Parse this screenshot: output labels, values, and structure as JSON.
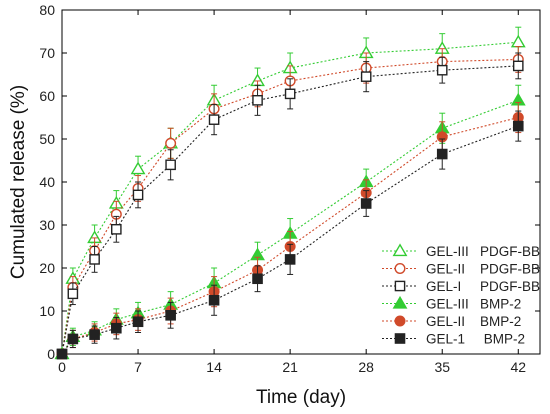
{
  "chart_data": {
    "type": "line",
    "xlabel": "Time (day)",
    "ylabel": "Cumulated release (%)",
    "xlim": [
      0,
      44
    ],
    "ylim": [
      0,
      80
    ],
    "x_ticks": [
      0,
      7,
      14,
      21,
      28,
      35,
      42
    ],
    "y_ticks": [
      0,
      10,
      20,
      30,
      40,
      50,
      60,
      70,
      80
    ],
    "grid": false,
    "legend_position": "bottom-right",
    "x": [
      0,
      1,
      3,
      5,
      7,
      10,
      14,
      18,
      21,
      28,
      35,
      42
    ],
    "series": [
      {
        "name": "GEL-III   PDGF-BB",
        "color": "#33cc33",
        "marker": "triangle-open",
        "values": [
          0,
          17.5,
          27,
          35,
          43,
          49,
          59,
          63.5,
          66.5,
          70,
          71,
          72.5
        ],
        "errors": [
          0,
          2.5,
          3,
          3,
          3,
          3.5,
          3.5,
          3,
          3.5,
          3.5,
          3.5,
          3.5
        ]
      },
      {
        "name": "GEL-II    PDGF-BB",
        "color": "#d04a2a",
        "marker": "circle-open",
        "values": [
          0,
          15.5,
          24,
          32.5,
          38.5,
          49,
          57,
          60.5,
          63.5,
          66.5,
          68,
          68.5
        ],
        "errors": [
          0,
          2.5,
          3,
          3,
          3,
          3.5,
          3.5,
          3,
          3.5,
          3.5,
          3,
          3
        ]
      },
      {
        "name": "GEL-I     PDGF-BB",
        "color": "#222222",
        "marker": "square-open",
        "values": [
          0,
          14,
          22,
          29,
          37,
          44,
          54.5,
          59,
          60.5,
          64.5,
          66,
          67
        ],
        "errors": [
          0,
          2.5,
          3,
          3,
          3,
          3.5,
          3.5,
          3.5,
          3.5,
          3.5,
          3,
          3
        ]
      },
      {
        "name": "GEL-III   BMP-2",
        "color": "#33cc33",
        "marker": "triangle-filled",
        "values": [
          0,
          4,
          5.5,
          8,
          9.5,
          11.5,
          16.5,
          23,
          28,
          40,
          52.5,
          59
        ],
        "errors": [
          0,
          2,
          2,
          2.5,
          2.5,
          3,
          3.5,
          3,
          3.5,
          3,
          3.5,
          3.5
        ]
      },
      {
        "name": "GEL-II    BMP-2",
        "color": "#d04a2a",
        "marker": "circle-filled",
        "values": [
          0,
          3.5,
          5,
          7,
          8,
          10,
          14.5,
          19.5,
          25,
          37.5,
          50.5,
          55
        ],
        "errors": [
          0,
          2,
          2,
          2.5,
          2.5,
          3,
          3.5,
          3,
          3.5,
          3,
          3.5,
          3.5
        ]
      },
      {
        "name": "GEL-1     BMP-2",
        "color": "#222222",
        "marker": "square-filled",
        "values": [
          0,
          3.5,
          4.5,
          6,
          7.5,
          9,
          12.5,
          17.5,
          22,
          35,
          46.5,
          53
        ],
        "errors": [
          0,
          2,
          2,
          2.5,
          2.5,
          3,
          3.5,
          3,
          3.5,
          3,
          3.5,
          3.5
        ]
      }
    ]
  }
}
